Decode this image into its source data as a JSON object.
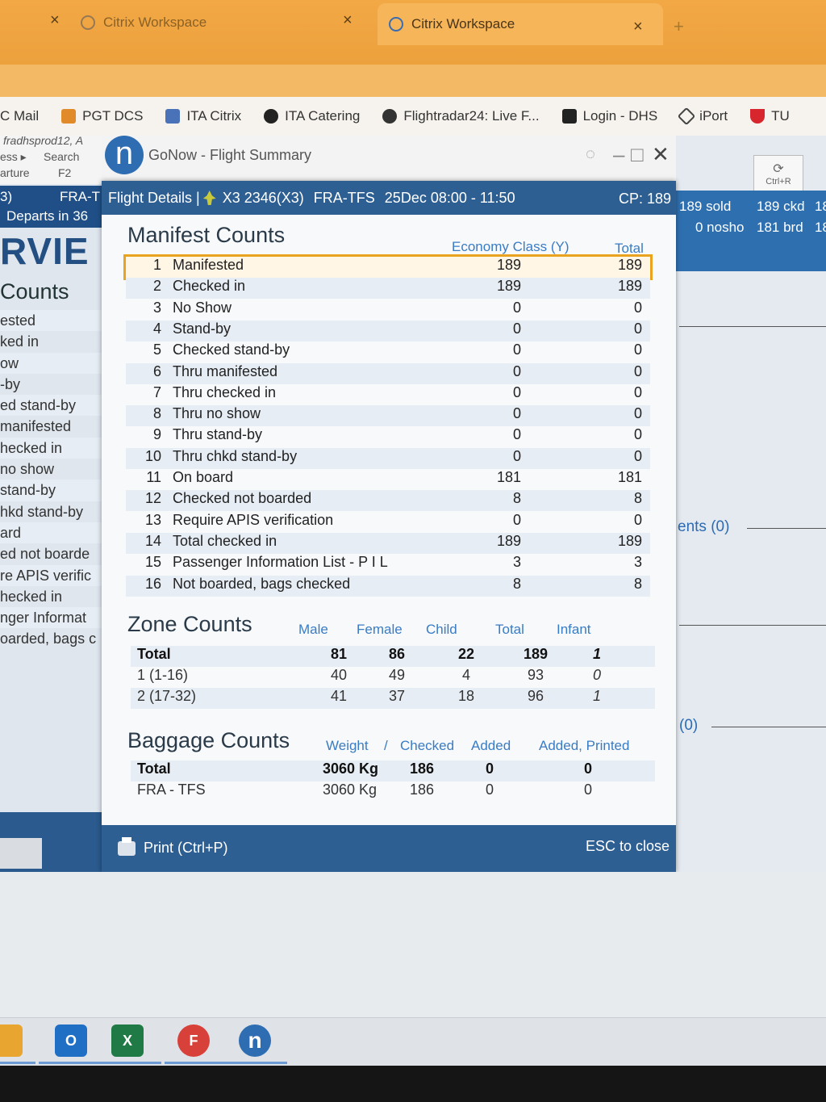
{
  "browser": {
    "tabs": [
      {
        "label": "Citrix Workspace",
        "active": false
      },
      {
        "label": "Citrix Workspace",
        "active": true
      }
    ],
    "close_glyph": "×",
    "new_tab_glyph": "+",
    "bookmarks": [
      {
        "label": "C Mail",
        "icon": "mail-icon"
      },
      {
        "label": "PGT DCS",
        "icon": "pgt-icon"
      },
      {
        "label": "ITA Citrix",
        "icon": "lock-icon"
      },
      {
        "label": "ITA Catering",
        "icon": "globe-icon"
      },
      {
        "label": "Flightradar24: Live F...",
        "icon": "radar-icon"
      },
      {
        "label": "Login - DHS",
        "icon": "eos-icon"
      },
      {
        "label": "iPort",
        "icon": "iport-icon"
      },
      {
        "label": "TU",
        "icon": "tui-icon"
      }
    ]
  },
  "background_left": {
    "crumb1": "fradhsprod12, A",
    "crumb2": "ess ▸",
    "search": "Search",
    "f2": "F2",
    "arture": "arture",
    "flight": "3)",
    "route": "FRA-T",
    "departs": "Departs in 36",
    "big": "RVIE",
    "section": "Counts",
    "list": [
      "ested",
      "ked in",
      "ow",
      "-by",
      "ed stand-by",
      "manifested",
      "hecked in",
      "no show",
      "stand-by",
      "hkd stand-by",
      "ard",
      "ed not boarde",
      "re APIS verific",
      "hecked in",
      "nger Informat",
      "oarded, bags c"
    ]
  },
  "background_right": {
    "ctrl": "Ctrl+R",
    "sold": "189 sold",
    "ckd": "189 ckd",
    "nosho": "0 nosho",
    "brd": "181 brd",
    "c1": "18",
    "c2": "18",
    "link1": "ents (0)",
    "link2": "(0)"
  },
  "app": {
    "title": "GoNow - Flight Summary",
    "min": "–",
    "max": "□",
    "close": "✕"
  },
  "modal": {
    "header": {
      "label": "Flight Details |",
      "flight": "X3 2346(X3)",
      "route": "FRA-TFS",
      "date": "25Dec 08:00 - 11:50",
      "cp": "CP: 189"
    },
    "manifest": {
      "title": "Manifest Counts",
      "col1": "Economy Class (Y)",
      "col2": "Total",
      "rows": [
        {
          "n": "1",
          "label": "Manifested",
          "y": "189",
          "total": "189"
        },
        {
          "n": "2",
          "label": "Checked in",
          "y": "189",
          "total": "189"
        },
        {
          "n": "3",
          "label": "No Show",
          "y": "0",
          "total": "0"
        },
        {
          "n": "4",
          "label": "Stand-by",
          "y": "0",
          "total": "0"
        },
        {
          "n": "5",
          "label": "Checked stand-by",
          "y": "0",
          "total": "0"
        },
        {
          "n": "6",
          "label": "Thru manifested",
          "y": "0",
          "total": "0"
        },
        {
          "n": "7",
          "label": "Thru checked in",
          "y": "0",
          "total": "0"
        },
        {
          "n": "8",
          "label": "Thru no show",
          "y": "0",
          "total": "0"
        },
        {
          "n": "9",
          "label": "Thru stand-by",
          "y": "0",
          "total": "0"
        },
        {
          "n": "10",
          "label": "Thru chkd stand-by",
          "y": "0",
          "total": "0"
        },
        {
          "n": "11",
          "label": "On board",
          "y": "181",
          "total": "181"
        },
        {
          "n": "12",
          "label": "Checked not boarded",
          "y": "8",
          "total": "8"
        },
        {
          "n": "13",
          "label": "Require APIS verification",
          "y": "0",
          "total": "0"
        },
        {
          "n": "14",
          "label": "Total checked in",
          "y": "189",
          "total": "189"
        },
        {
          "n": "15",
          "label": "Passenger Information List - P I L",
          "y": "3",
          "total": "3"
        },
        {
          "n": "16",
          "label": "Not boarded, bags checked",
          "y": "8",
          "total": "8"
        }
      ]
    },
    "zone": {
      "title": "Zone Counts",
      "headers": [
        "Male",
        "Female",
        "Child",
        "Total",
        "Infant"
      ],
      "rows": [
        {
          "label": "Total",
          "male": "81",
          "female": "86",
          "child": "22",
          "total": "189",
          "infant": "1"
        },
        {
          "label": "1 (1-16)",
          "male": "40",
          "female": "49",
          "child": "4",
          "total": "93",
          "infant": "0"
        },
        {
          "label": "2 (17-32)",
          "male": "41",
          "female": "37",
          "child": "18",
          "total": "96",
          "infant": "1"
        }
      ]
    },
    "baggage": {
      "title": "Baggage Counts",
      "headers": [
        "Weight",
        "/",
        "Checked",
        "Added",
        "Added, Printed"
      ],
      "rows": [
        {
          "label": "Total",
          "weight": "3060 Kg",
          "checked": "186",
          "added": "0",
          "printed": "0"
        },
        {
          "label": "FRA - TFS",
          "weight": "3060 Kg",
          "checked": "186",
          "added": "0",
          "printed": "0"
        }
      ]
    },
    "footer": {
      "print": "Print (Ctrl+P)",
      "esc": "ESC to close"
    }
  },
  "taskbar": {
    "outlook": "O",
    "excel": "X",
    "chrome": "F",
    "gonow": "n"
  }
}
